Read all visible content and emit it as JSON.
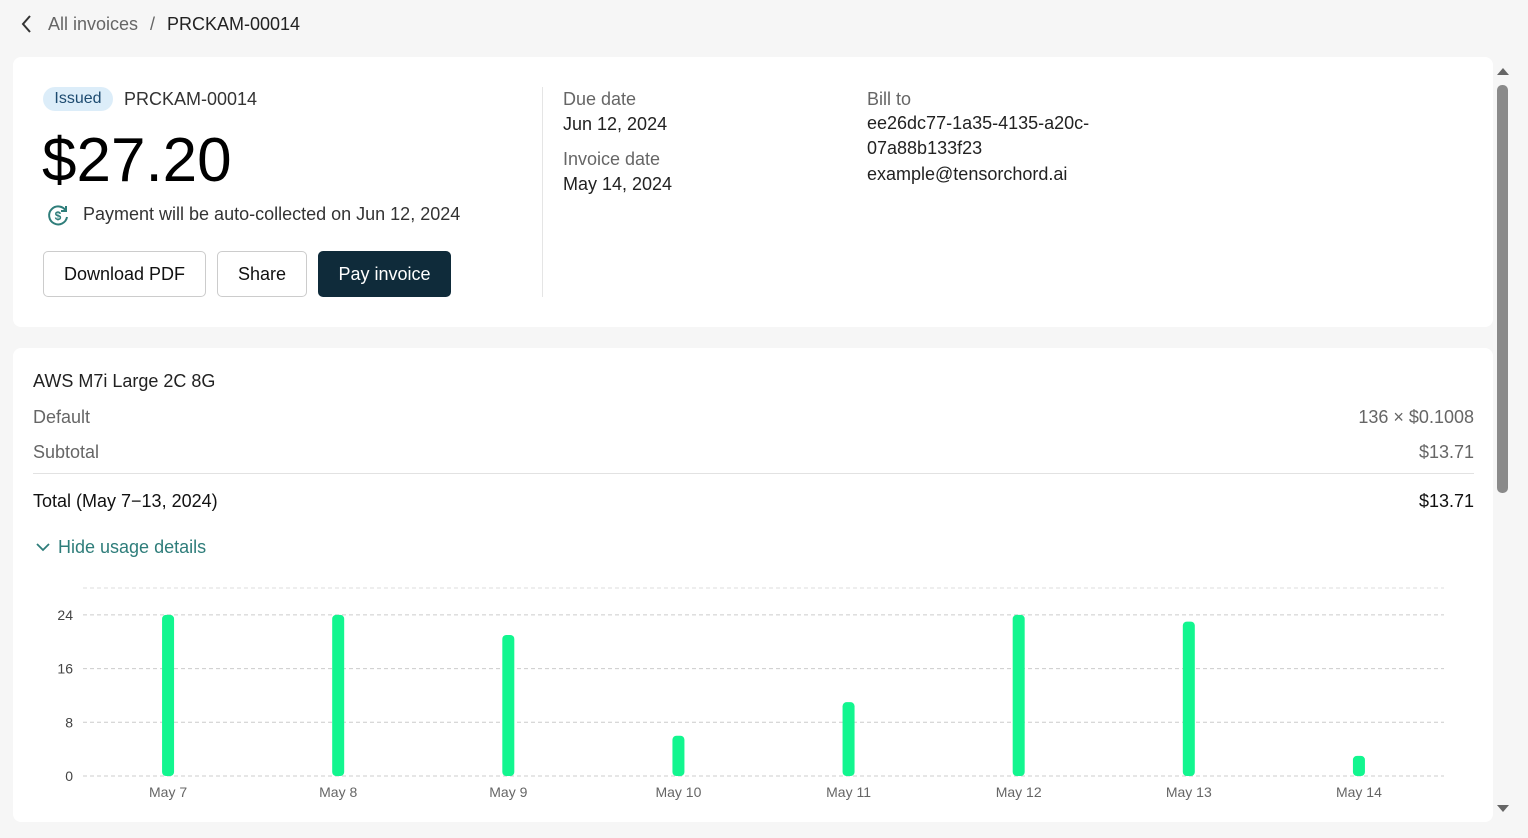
{
  "breadcrumb": {
    "parent": "All invoices",
    "separator": "/",
    "current": "PRCKAM-00014"
  },
  "invoice": {
    "status": "Issued",
    "number": "PRCKAM-00014",
    "amount": "$27.20",
    "auto_collect": "Payment will be auto-collected on Jun 12, 2024",
    "buttons": [
      "Download PDF",
      "Share",
      "Pay invoice"
    ]
  },
  "details": {
    "due_date_label": "Due date",
    "due_date": "Jun 12, 2024",
    "invoice_date_label": "Invoice date",
    "invoice_date": "May 14, 2024",
    "bill_to_label": "Bill to",
    "bill_to_id": "ee26dc77-1a35-4135-a20c-07a88b133f23",
    "bill_to_email": "example@tensorchord.ai"
  },
  "usage": {
    "product": "AWS M7i Large 2C 8G",
    "rows": [
      [
        "Default",
        "136 × $0.1008"
      ],
      [
        "Subtotal",
        "$13.71"
      ]
    ],
    "total": [
      "Total (May 7−13, 2024)",
      "$13.71"
    ],
    "toggle": "Hide usage details"
  },
  "chart_data": {
    "type": "bar",
    "categories": [
      "May 7",
      "May 8",
      "May 9",
      "May 10",
      "May 11",
      "May 12",
      "May 13",
      "May 14"
    ],
    "values": [
      24,
      24,
      21,
      6,
      11,
      24,
      23,
      3
    ],
    "color": "#12f68f",
    "ylim": [
      0,
      28
    ],
    "yticks": [
      0,
      8,
      16,
      24
    ],
    "grid": true
  }
}
